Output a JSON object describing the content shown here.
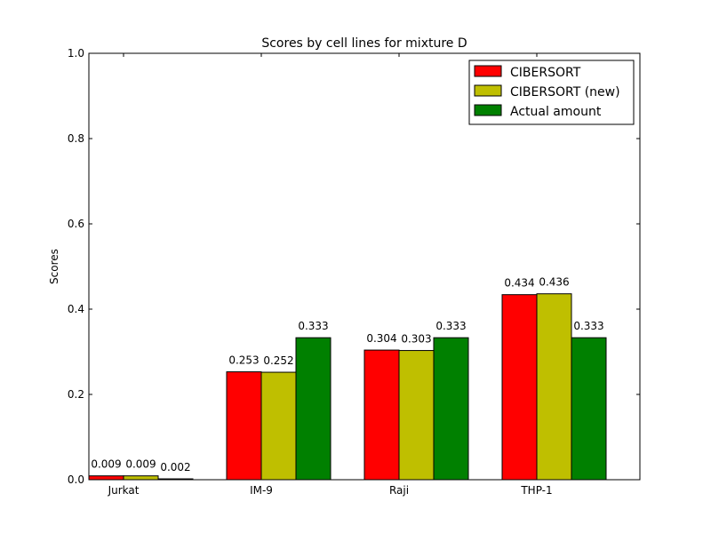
{
  "chart_data": {
    "type": "bar",
    "title": "Scores by cell lines for mixture D",
    "xlabel": "",
    "ylabel": "Scores",
    "ylim": [
      0,
      1.0
    ],
    "yticks": [
      "0.0",
      "0.2",
      "0.4",
      "0.6",
      "0.8",
      "1.0"
    ],
    "categories": [
      "Jurkat",
      "IM-9",
      "Raji",
      "THP-1"
    ],
    "series": [
      {
        "name": "CIBERSORT",
        "color": "#ff0000",
        "values": [
          0.009,
          0.253,
          0.304,
          0.434
        ],
        "labels": [
          "0.009",
          "0.253",
          "0.304",
          "0.434"
        ]
      },
      {
        "name": "CIBERSORT (new)",
        "color": "#bfbf00",
        "values": [
          0.009,
          0.252,
          0.303,
          0.436
        ],
        "labels": [
          "0.009",
          "0.252",
          "0.303",
          "0.436"
        ]
      },
      {
        "name": "Actual amount",
        "color": "#008000",
        "values": [
          0.002,
          0.333,
          0.333,
          0.333
        ],
        "labels": [
          "0.002",
          "0.333",
          "0.333",
          "0.333"
        ]
      }
    ],
    "legend": "top-right",
    "grid": false
  }
}
